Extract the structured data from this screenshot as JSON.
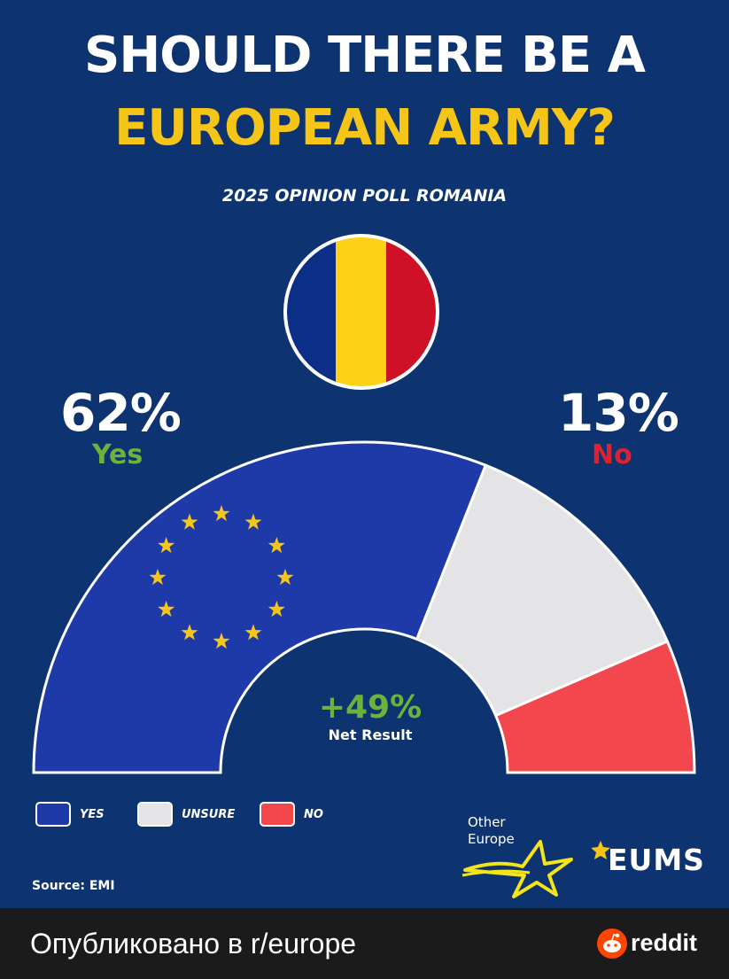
{
  "poster": {
    "title_line1": "SHOULD THERE BE A",
    "title_line2": "EUROPEAN ARMY?",
    "subtitle": "2025 OPINION POLL ROMANIA",
    "source": "Source: EMI",
    "net_result_value": "+49%",
    "net_result_label": "Net Result",
    "yes_pct_text": "62%",
    "yes_label": "Yes",
    "no_pct_text": "13%",
    "no_label": "No",
    "flag_colors": [
      "#0b2e86",
      "#fcd116",
      "#ce1126"
    ],
    "other_europe_line1": "Other",
    "other_europe_line2": "Europe",
    "eums_logo_text": "EUMS"
  },
  "legend": {
    "yes": "YES",
    "unsure": "UNSURE",
    "no": "NO"
  },
  "colors": {
    "background": "#0d3470",
    "yes": "#1e3aa8",
    "unsure": "#e4e4e6",
    "no": "#f2484d",
    "accent_yellow": "#f5c518",
    "green": "#6ab43b",
    "red_text": "#e0202a"
  },
  "chart_data": {
    "type": "pie",
    "variant": "semi-donut",
    "categories": [
      "YES",
      "UNSURE",
      "NO"
    ],
    "values": [
      62,
      25,
      13
    ]
  },
  "footer": {
    "text": "Опубликовано в r/europe",
    "reddit_label": "reddit"
  }
}
